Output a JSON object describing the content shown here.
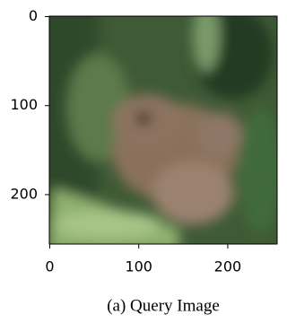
{
  "chart_data": {
    "type": "image",
    "caption": "(a) Query Image",
    "xlim": [
      -0.5,
      255.5
    ],
    "ylim": [
      255.5,
      -0.5
    ],
    "xticks": [
      0,
      100,
      200
    ],
    "yticks": [
      0,
      100,
      200
    ]
  }
}
